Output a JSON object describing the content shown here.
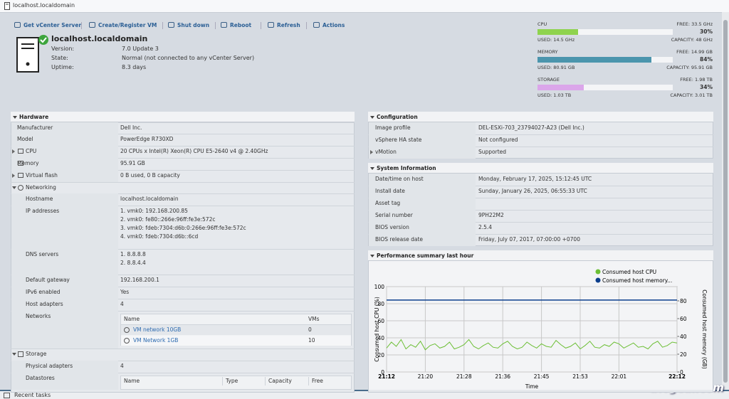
{
  "window_title": "localhost.localdomain",
  "toolbar": [
    "Get vCenter Server",
    "Create/Register VM",
    "Shut down",
    "Reboot",
    "Refresh",
    "Actions"
  ],
  "host": {
    "name": "localhost.localdomain",
    "details": [
      {
        "label": "Version:",
        "value": "7.0 Update 3"
      },
      {
        "label": "State:",
        "value": "Normal (not connected to any vCenter Server)"
      },
      {
        "label": "Uptime:",
        "value": "8.3 days"
      }
    ]
  },
  "resources": [
    {
      "name": "CPU",
      "free": "FREE: 33.5 GHz",
      "value": 30,
      "value_label": "30%",
      "used": "USED: 14.5 GHz",
      "capacity": "CAPACITY: 48 GHz",
      "color": "#8fd34e"
    },
    {
      "name": "MEMORY",
      "free": "FREE: 14.99 GB",
      "value": 84,
      "value_label": "84%",
      "used": "USED: 80.91 GB",
      "capacity": "CAPACITY: 95.91 GB",
      "color": "#4b95ad"
    },
    {
      "name": "STORAGE",
      "free": "FREE: 1.98 TB",
      "value": 34,
      "value_label": "34%",
      "used": "USED: 1.03 TB",
      "capacity": "CAPACITY: 3.01 TB",
      "color": "#dba6ea"
    }
  ],
  "hardware": {
    "title": "Hardware",
    "rows": [
      {
        "label": "Manufacturer",
        "value": "Dell Inc."
      },
      {
        "label": "Model",
        "value": "PowerEdge R730XD"
      },
      {
        "label": "CPU",
        "value": "20 CPUs x Intel(R) Xeon(R) CPU E5-2640 v4 @ 2.40GHz"
      },
      {
        "label": "Memory",
        "value": "95.91 GB"
      },
      {
        "label": "Virtual flash",
        "value": "0 B used, 0 B capacity"
      }
    ],
    "networking": {
      "label": "Networking",
      "rows": [
        {
          "label": "Hostname",
          "value": [
            "localhost.localdomain"
          ]
        },
        {
          "label": "IP addresses",
          "value": [
            "1. vmk0: 192.168.200.85",
            "2. vmk0: fe80::266e:96ff:fe3e:572c",
            "3. vmk0: fdeb:7304:d6b:0:266e:96ff:fe3e:572c",
            "4. vmk0: fdeb:7304:d6b::6cd"
          ]
        },
        {
          "label": "DNS servers",
          "value": [
            "1. 8.8.8.8",
            "2. 8.8.4.4"
          ]
        },
        {
          "label": "Default gateway",
          "value": [
            "192.168.200.1"
          ]
        },
        {
          "label": "IPv6 enabled",
          "value": [
            "Yes"
          ]
        },
        {
          "label": "Host adapters",
          "value": [
            4
          ]
        }
      ],
      "networks": {
        "label": "Networks",
        "columns": [
          "Name",
          "VMs"
        ],
        "rows": [
          [
            "VM network 10GB",
            0
          ],
          [
            "VM Network 1GB",
            10
          ]
        ]
      }
    },
    "storage": {
      "label": "Storage",
      "rows": [
        {
          "label": "Physical adapters",
          "value": [
            4
          ]
        }
      ],
      "datastores": {
        "label": "Datastores",
        "columns": [
          "Name",
          "Type",
          "Capacity",
          "Free"
        ]
      }
    }
  },
  "configuration": {
    "title": "Configuration",
    "rows": [
      {
        "label": "Image profile",
        "value": "DEL-ESXi-703_23794027-A23 (Dell Inc.)"
      },
      {
        "label": "vSphere HA state",
        "value": "Not configured"
      },
      {
        "label": "vMotion",
        "value": "Supported"
      }
    ]
  },
  "system_information": {
    "title": "System Information",
    "rows": [
      {
        "label": "Date/time on host",
        "value": "Monday, February 17, 2025, 15:12:45 UTC"
      },
      {
        "label": "Install date",
        "value": "Sunday, January 26, 2025, 06:55:33 UTC"
      },
      {
        "label": "Asset tag",
        "value": ""
      },
      {
        "label": "Serial number",
        "value": "9PH22M2"
      },
      {
        "label": "BIOS version",
        "value": "2.5.4"
      },
      {
        "label": "BIOS release date",
        "value": "Friday, July 07, 2017, 07:00:00 +0700"
      }
    ]
  },
  "performance": {
    "title": "Performance summary last hour",
    "chart": {
      "type": "line",
      "x_label": "Time",
      "y_label": "Consumed host CPU (%)",
      "y2_label": "Consumed host memory (GB)",
      "xlim": [
        0,
        60
      ],
      "xticks": [
        {
          "value": 0,
          "label": "21:12"
        },
        {
          "value": 8,
          "label": "21:20"
        },
        {
          "value": 16,
          "label": "21:28"
        },
        {
          "value": 24,
          "label": "21:36"
        },
        {
          "value": 32,
          "label": "21:45"
        },
        {
          "value": 40,
          "label": "21:53"
        },
        {
          "value": 48,
          "label": "22:01"
        },
        {
          "value": 60,
          "label": "22:12"
        }
      ],
      "ylim": [
        0,
        100
      ],
      "yticks": [
        0,
        20,
        40,
        60,
        80,
        100
      ],
      "y2lim": [
        0,
        96
      ],
      "y2ticks": [
        0,
        20,
        40,
        60,
        80
      ],
      "grid": true,
      "series": [
        {
          "name": "Consumed host CPU",
          "color": "#6cbf35",
          "x": [
            0,
            1,
            2,
            3,
            4,
            5,
            6,
            7,
            8,
            9,
            10,
            11,
            12,
            13,
            14,
            15,
            16,
            17,
            18,
            19,
            20,
            21,
            22,
            23,
            24,
            25,
            26,
            27,
            28,
            29,
            30,
            31,
            32,
            33,
            34,
            35,
            36,
            37,
            38,
            39,
            40,
            41,
            42,
            43,
            44,
            45,
            46,
            47,
            48,
            49,
            50,
            51,
            52,
            53,
            54,
            55,
            56,
            57,
            58,
            59,
            60
          ],
          "values": [
            28,
            35,
            30,
            38,
            27,
            32,
            29,
            36,
            26,
            31,
            33,
            28,
            30,
            35,
            27,
            29,
            32,
            38,
            30,
            27,
            31,
            34,
            29,
            28,
            33,
            36,
            30,
            27,
            29,
            35,
            31,
            28,
            33,
            30,
            29,
            37,
            32,
            28,
            30,
            34,
            27,
            31,
            36,
            29,
            28,
            32,
            30,
            35,
            33,
            28,
            31,
            34,
            29,
            30,
            27,
            33,
            36,
            29,
            31,
            35,
            34
          ]
        },
        {
          "name": "Consumed host memory...",
          "color": "#0b3d8c",
          "axis": "y2",
          "x": [
            0,
            60
          ],
          "values": [
            80.91,
            80.91
          ]
        }
      ]
    }
  },
  "bottom_tab": "Recent tasks",
  "watermark": "blogeai.com"
}
